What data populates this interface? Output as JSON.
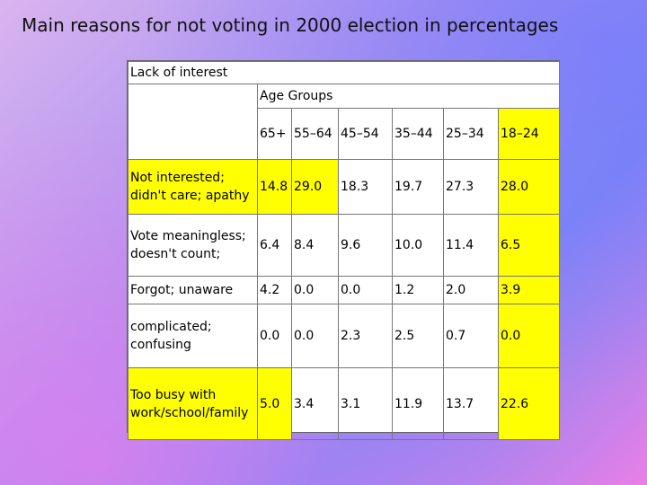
{
  "title": "Main reasons for not voting in 2000 election in percentages",
  "chart_data": {
    "type": "table",
    "header": "Lack of interest",
    "group_label": "Age Groups",
    "columns": [
      "65+",
      "55–64",
      "45–54",
      "35–44",
      "25–34",
      "18–24"
    ],
    "highlight_column": "18–24",
    "rows": [
      {
        "label": "Not interested; didn't care; apathy",
        "values": [
          "14.8",
          "29.0",
          "18.3",
          "19.7",
          "27.3",
          "28.0"
        ],
        "highlight": true
      },
      {
        "label": "Vote meaningless; doesn't count;",
        "values": [
          "6.4",
          "8.4",
          "9.6",
          "10.0",
          "11.4",
          "6.5"
        ],
        "highlight": false
      },
      {
        "label": "Forgot; unaware",
        "values": [
          "4.2",
          "0.0",
          "0.0",
          "1.2",
          "2.0",
          "3.9"
        ],
        "highlight": false
      },
      {
        "label": "complicated; confusing",
        "values": [
          "0.0",
          "0.0",
          "2.3",
          "2.5",
          "0.7",
          "0.0"
        ],
        "highlight": false
      },
      {
        "label": "Too busy with work/school/family",
        "values": [
          "5.0",
          "3.4",
          "3.1",
          "11.9",
          "13.7",
          "22.6"
        ],
        "highlight": true
      }
    ],
    "highlight_color": "#ffff00"
  }
}
